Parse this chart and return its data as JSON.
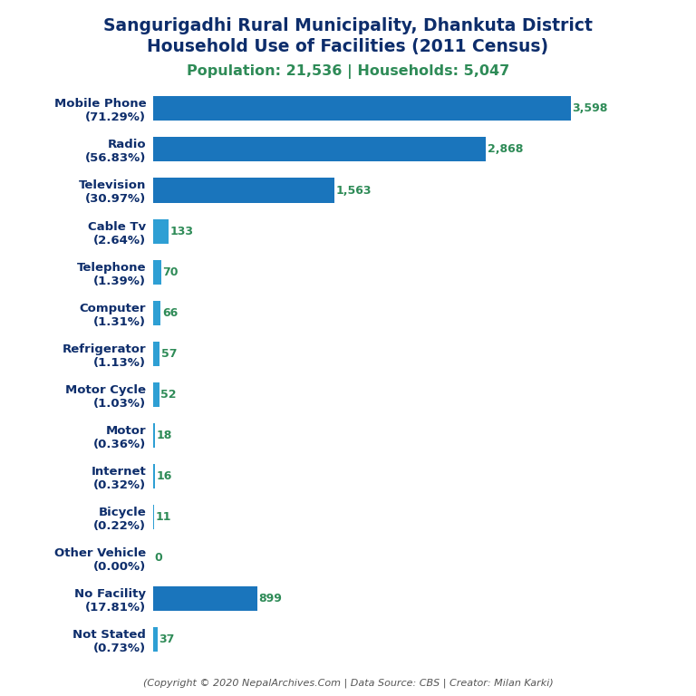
{
  "title_line1": "Sangurigadhi Rural Municipality, Dhankuta District",
  "title_line2": "Household Use of Facilities (2011 Census)",
  "subtitle": "Population: 21,536 | Households: 5,047",
  "footer": "(Copyright © 2020 NepalArchives.Com | Data Source: CBS | Creator: Milan Karki)",
  "categories": [
    "Not Stated\n(0.73%)",
    "No Facility\n(17.81%)",
    "Other Vehicle\n(0.00%)",
    "Bicycle\n(0.22%)",
    "Internet\n(0.32%)",
    "Motor\n(0.36%)",
    "Motor Cycle\n(1.03%)",
    "Refrigerator\n(1.13%)",
    "Computer\n(1.31%)",
    "Telephone\n(1.39%)",
    "Cable Tv\n(2.64%)",
    "Television\n(30.97%)",
    "Radio\n(56.83%)",
    "Mobile Phone\n(71.29%)"
  ],
  "values": [
    37,
    899,
    0,
    11,
    16,
    18,
    52,
    57,
    66,
    70,
    133,
    1563,
    2868,
    3598
  ],
  "value_labels": [
    "37",
    "899",
    "0",
    "11",
    "16",
    "18",
    "52",
    "57",
    "66",
    "70",
    "133",
    "1,563",
    "2,868",
    "3,598"
  ],
  "bar_color_large": "#1a75bc",
  "bar_color_small": "#2e9fd4",
  "value_color": "#2e8b57",
  "title_color": "#0d2d6b",
  "subtitle_color": "#2e8b57",
  "footer_color": "#555555",
  "background_color": "#ffffff",
  "xlim": [
    0,
    4200
  ],
  "title_fontsize": 13.5,
  "subtitle_fontsize": 11.5,
  "label_fontsize": 9.5,
  "value_fontsize": 9,
  "footer_fontsize": 8
}
